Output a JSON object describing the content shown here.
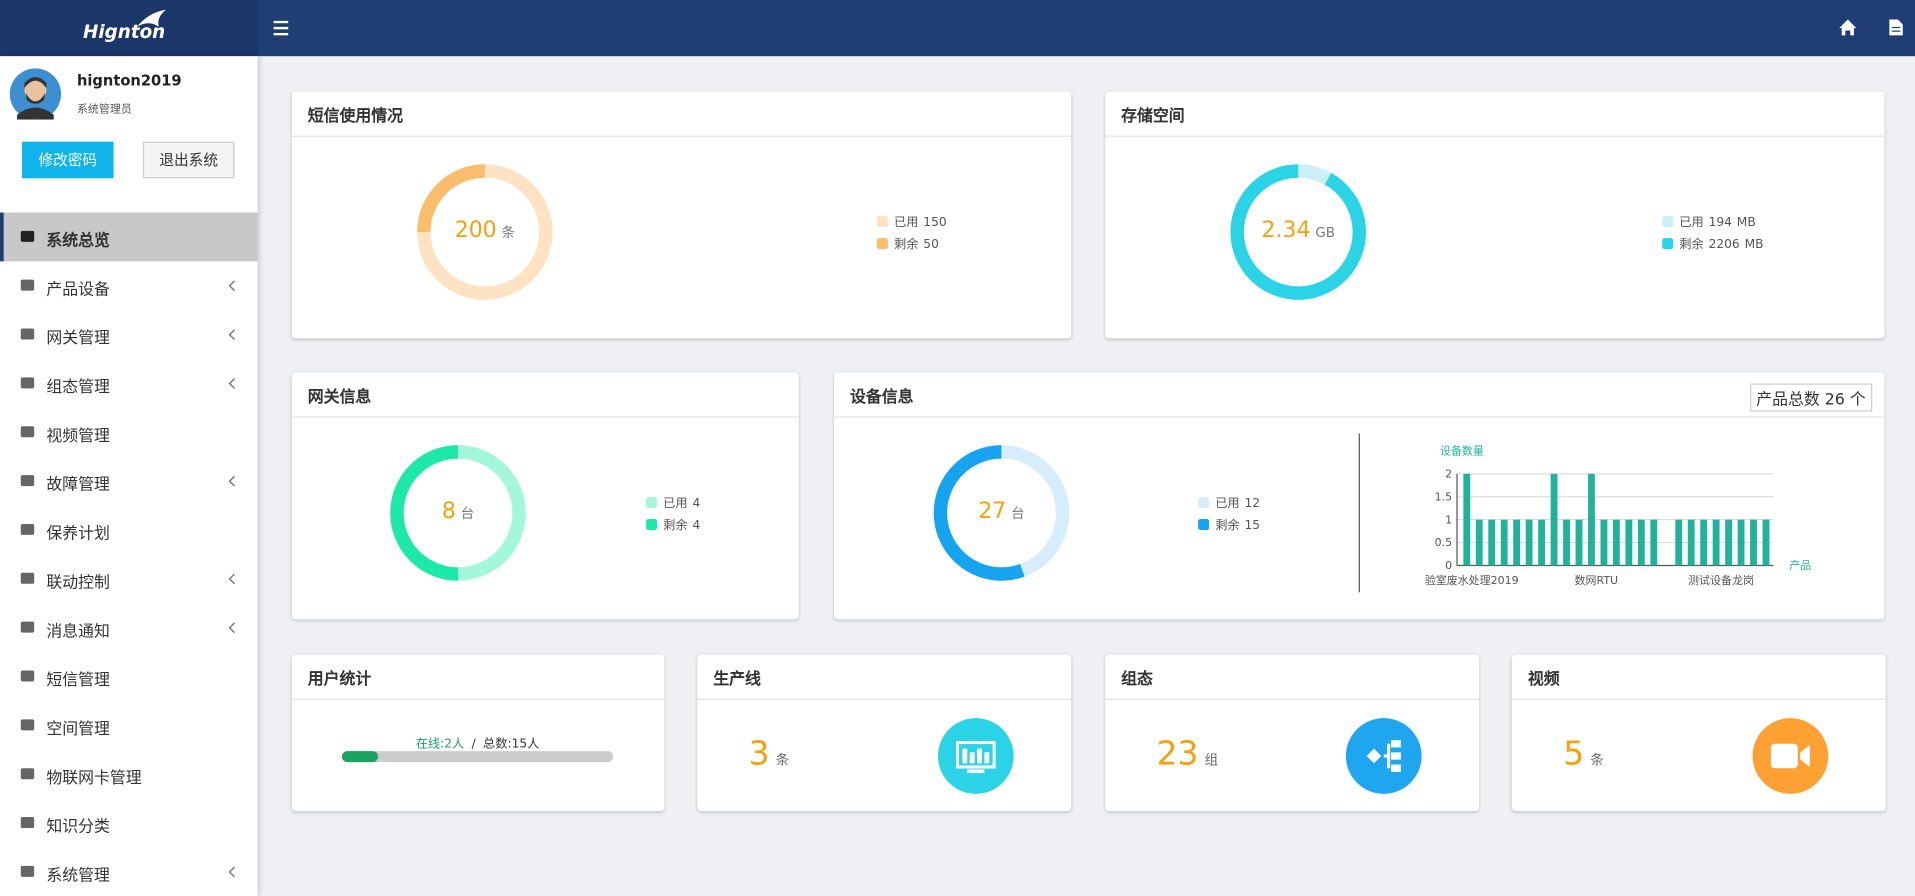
{
  "header": {
    "logo": "Hignton"
  },
  "user": {
    "name": "hignton2019",
    "role": "系统管理员",
    "buttons": [
      "修改密码",
      "退出系统"
    ]
  },
  "menu": [
    {
      "label": "系统总览",
      "active": true,
      "submenu": false
    },
    {
      "label": "产品设备",
      "active": false,
      "submenu": true
    },
    {
      "label": "网关管理",
      "active": false,
      "submenu": true
    },
    {
      "label": "组态管理",
      "active": false,
      "submenu": true
    },
    {
      "label": "视频管理",
      "active": false,
      "submenu": false
    },
    {
      "label": "故障管理",
      "active": false,
      "submenu": true
    },
    {
      "label": "保养计划",
      "active": false,
      "submenu": false
    },
    {
      "label": "联动控制",
      "active": false,
      "submenu": true
    },
    {
      "label": "消息通知",
      "active": false,
      "submenu": true
    },
    {
      "label": "短信管理",
      "active": false,
      "submenu": false
    },
    {
      "label": "空间管理",
      "active": false,
      "submenu": false
    },
    {
      "label": "物联网卡管理",
      "active": false,
      "submenu": false
    },
    {
      "label": "知识分类",
      "active": false,
      "submenu": false
    },
    {
      "label": "系统管理",
      "active": false,
      "submenu": true
    }
  ],
  "donuts": [
    {
      "title": "短信使用情况",
      "total": 200,
      "total_unit": "条",
      "items": [
        {
          "name": "已用",
          "value": 150,
          "color": "#fde3c4"
        },
        {
          "name": "剩余",
          "value": 50,
          "color": "#f9bd6c"
        }
      ]
    },
    {
      "title": "存储空间",
      "total": 2.34,
      "total_unit": "GB",
      "legend_unit": "MB",
      "items": [
        {
          "name": "已用",
          "value": 194,
          "color": "#c9f0f7"
        },
        {
          "name": "剩余",
          "value": 2206,
          "color": "#2bd3e6"
        }
      ]
    },
    {
      "title": "网关信息",
      "total": 8,
      "total_unit": "台",
      "items": [
        {
          "name": "已用",
          "value": 4,
          "color": "#a3f7dd"
        },
        {
          "name": "剩余",
          "value": 4,
          "color": "#1ce8a8"
        }
      ]
    },
    {
      "title": "设备信息",
      "total": 27,
      "total_unit": "台",
      "items": [
        {
          "name": "已用",
          "value": 12,
          "color": "#d6eefc"
        },
        {
          "name": "剩余",
          "value": 15,
          "color": "#16a3ef"
        }
      ]
    }
  ],
  "device_summary": {
    "label": "产品总数",
    "value": 26,
    "unit": "个"
  },
  "bar_chart": {
    "type": "bar",
    "y_label": "设备数量",
    "x_label": "产品",
    "categories": [
      "验室废水处理2019",
      null,
      null,
      null,
      null,
      null,
      null,
      null,
      null,
      null,
      "数网RTU",
      null,
      null,
      null,
      null,
      null,
      null,
      null,
      null,
      null,
      "测试设备龙岗",
      null,
      null,
      null,
      null
    ],
    "values": [
      2,
      1,
      1,
      1,
      1,
      1,
      1,
      2,
      1,
      1,
      2,
      1,
      1,
      1,
      1,
      1,
      0,
      1,
      1,
      1,
      1,
      1,
      1,
      1,
      1
    ],
    "color": "#1fb39b",
    "ylim": [
      0,
      2
    ],
    "yticks": [
      0,
      0.5,
      1,
      1.5,
      2
    ],
    "grid": true
  },
  "user_stats": {
    "title": "用户统计",
    "online_label": "在线:",
    "online": 2,
    "online_unit": "人",
    "separator": "/",
    "total_label": "总数:",
    "total": 15,
    "total_unit": "人"
  },
  "stats": [
    {
      "title": "生产线",
      "value": 3,
      "unit": "条",
      "color": "#2bd3e6"
    },
    {
      "title": "组态",
      "value": 23,
      "unit": "组",
      "color": "#1ea7ef"
    },
    {
      "title": "视频",
      "value": 5,
      "unit": "条",
      "color": "#ffa032"
    }
  ]
}
